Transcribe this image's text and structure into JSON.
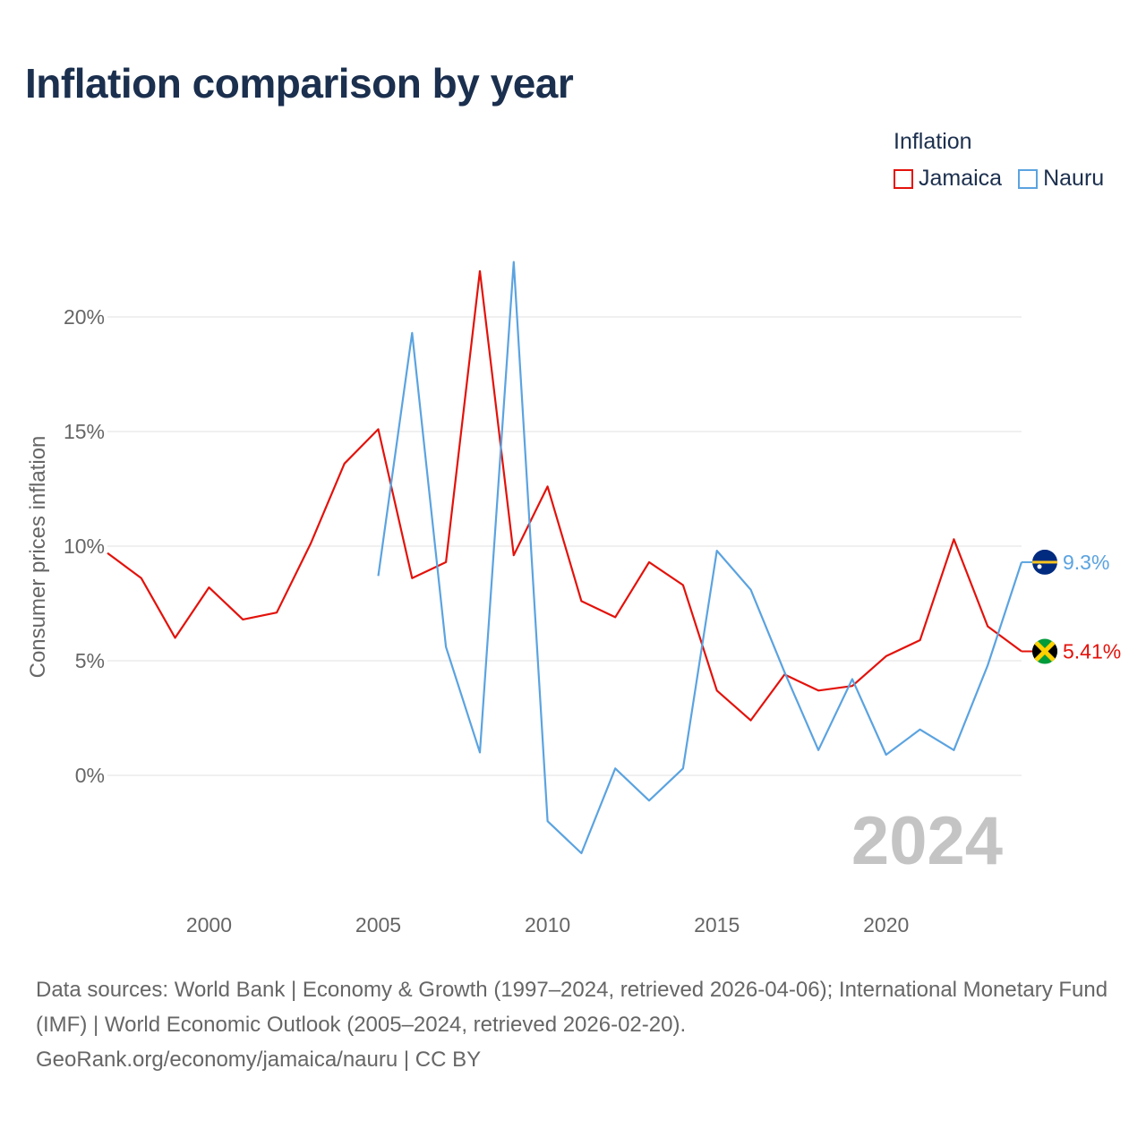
{
  "title": "Inflation comparison by year",
  "legend": {
    "title": "Inflation",
    "items": [
      {
        "name": "Jamaica",
        "color": "#e3120b"
      },
      {
        "name": "Nauru",
        "color": "#5ba3e0"
      }
    ]
  },
  "sources": {
    "line1": "Data sources: World Bank | Economy & Growth (1997–2024, retrieved 2026-04-06); International Monetary Fund (IMF) | World Economic Outlook (2005–2024, retrieved 2026-02-20).",
    "line2": "GeoRank.org/economy/jamaica/nauru | CC BY"
  },
  "chart_data": {
    "type": "line",
    "title": "Inflation comparison by year",
    "ylabel": "Consumer prices inflation",
    "xlabel": "",
    "xlim": [
      1997,
      2024
    ],
    "ylim": [
      -5,
      23
    ],
    "yticks": [
      0,
      5,
      10,
      15,
      20
    ],
    "ytick_labels": [
      "0%",
      "5%",
      "10%",
      "15%",
      "20%"
    ],
    "xticks": [
      2000,
      2005,
      2010,
      2015,
      2020
    ],
    "xtick_labels": [
      "2000",
      "2005",
      "2010",
      "2015",
      "2020"
    ],
    "year_label": "2024",
    "series": [
      {
        "name": "Jamaica",
        "color": "#e3120b",
        "end_label": "5.41%",
        "flag": "jamaica-flag",
        "x": [
          1997,
          1998,
          1999,
          2000,
          2001,
          2002,
          2003,
          2004,
          2005,
          2006,
          2007,
          2008,
          2009,
          2010,
          2011,
          2012,
          2013,
          2014,
          2015,
          2016,
          2017,
          2018,
          2019,
          2020,
          2021,
          2022,
          2023,
          2024
        ],
        "values": [
          9.7,
          8.6,
          6.0,
          8.2,
          6.8,
          7.1,
          10.1,
          13.6,
          15.1,
          8.6,
          9.3,
          22.0,
          9.6,
          12.6,
          7.6,
          6.9,
          9.3,
          8.3,
          3.7,
          2.4,
          4.4,
          3.7,
          3.9,
          5.2,
          5.9,
          10.3,
          6.5,
          5.41
        ]
      },
      {
        "name": "Nauru",
        "color": "#5ba3e0",
        "end_label": "9.3%",
        "flag": "nauru-flag",
        "x": [
          2005,
          2006,
          2007,
          2008,
          2009,
          2010,
          2011,
          2012,
          2013,
          2014,
          2015,
          2016,
          2017,
          2018,
          2019,
          2020,
          2021,
          2022,
          2023,
          2024
        ],
        "values": [
          8.7,
          19.3,
          5.6,
          1.0,
          22.4,
          -2.0,
          -3.4,
          0.3,
          -1.1,
          0.3,
          9.8,
          8.1,
          4.5,
          1.1,
          4.2,
          0.9,
          2.0,
          1.1,
          4.8,
          9.3
        ]
      }
    ]
  }
}
